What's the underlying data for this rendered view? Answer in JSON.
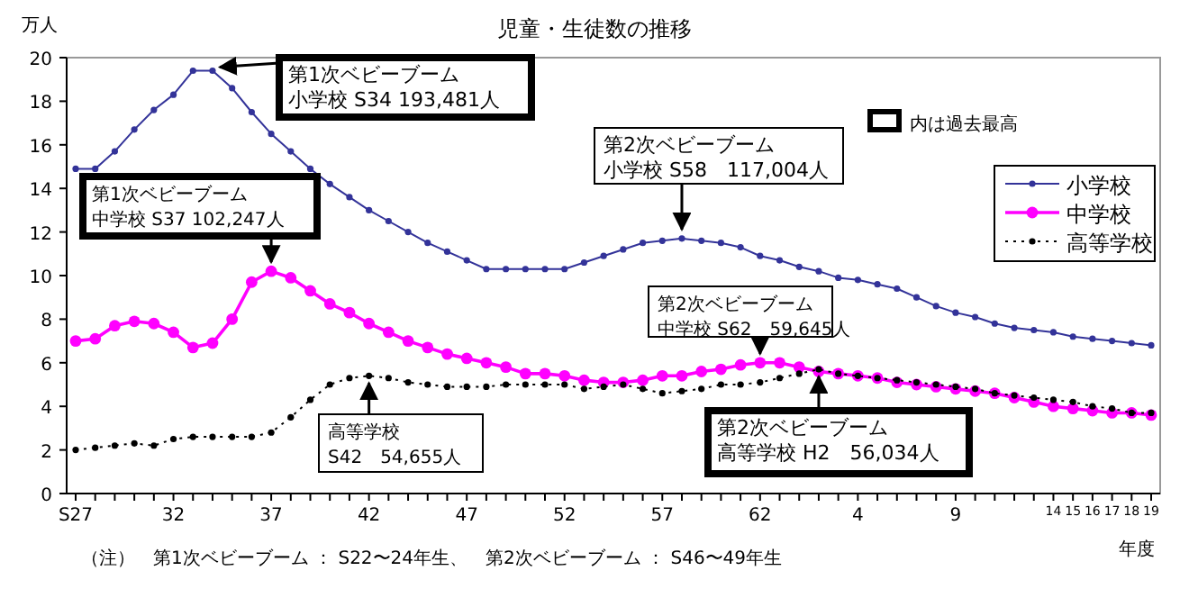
{
  "chart_data": {
    "type": "line",
    "title": "児童・生徒数の推移",
    "ylabel": "万人",
    "xlabel": "年度",
    "categories": [
      "S27",
      null,
      null,
      null,
      null,
      "32",
      null,
      null,
      null,
      null,
      "37",
      null,
      null,
      null,
      null,
      "42",
      null,
      null,
      null,
      null,
      "47",
      null,
      null,
      null,
      null,
      "52",
      null,
      null,
      null,
      null,
      "57",
      null,
      null,
      null,
      null,
      "62",
      null,
      null,
      null,
      null,
      "4",
      null,
      null,
      null,
      null,
      "9",
      null,
      null,
      null,
      null,
      "14",
      "15",
      "16",
      "17",
      "18",
      "19"
    ],
    "ylim": [
      0,
      20
    ],
    "yticks": [
      0,
      2,
      4,
      6,
      8,
      10,
      12,
      14,
      16,
      18,
      20
    ],
    "grid": false,
    "legend": "top right",
    "marker": "circle",
    "series": [
      {
        "name": "小学校",
        "color": "#333399",
        "values": [
          14.9,
          14.9,
          15.7,
          16.7,
          17.6,
          18.3,
          19.4,
          19.4,
          18.6,
          17.5,
          16.5,
          15.7,
          14.9,
          14.2,
          13.6,
          13.0,
          12.5,
          12.0,
          11.5,
          11.1,
          10.7,
          10.3,
          10.3,
          10.3,
          10.3,
          10.3,
          10.6,
          10.9,
          11.2,
          11.5,
          11.6,
          11.7,
          11.6,
          11.5,
          11.3,
          10.9,
          10.7,
          10.4,
          10.2,
          9.9,
          9.8,
          9.6,
          9.4,
          9.0,
          8.6,
          8.3,
          8.1,
          7.8,
          7.6,
          7.5,
          7.4,
          7.2,
          7.1,
          7.0,
          6.9,
          6.8
        ]
      },
      {
        "name": "中学校",
        "color": "#ff00ff",
        "values": [
          7.0,
          7.1,
          7.7,
          7.9,
          7.8,
          7.4,
          6.7,
          6.9,
          8.0,
          9.7,
          10.2,
          9.9,
          9.3,
          8.7,
          8.3,
          7.8,
          7.4,
          7.0,
          6.7,
          6.4,
          6.2,
          6.0,
          5.8,
          5.5,
          5.5,
          5.4,
          5.2,
          5.1,
          5.1,
          5.2,
          5.4,
          5.4,
          5.6,
          5.7,
          5.9,
          6.0,
          6.0,
          5.8,
          5.6,
          5.5,
          5.4,
          5.3,
          5.1,
          5.0,
          4.9,
          4.8,
          4.7,
          4.6,
          4.4,
          4.2,
          4.0,
          3.9,
          3.8,
          3.7,
          3.7,
          3.6
        ]
      },
      {
        "name": "高等学校",
        "color": "#000000",
        "line_style": "dotted",
        "values": [
          2.0,
          2.1,
          2.2,
          2.3,
          2.2,
          2.5,
          2.6,
          2.6,
          2.6,
          2.6,
          2.8,
          3.5,
          4.3,
          5.0,
          5.3,
          5.4,
          5.3,
          5.1,
          5.0,
          4.9,
          4.9,
          4.9,
          5.0,
          5.0,
          5.0,
          5.0,
          4.8,
          4.9,
          5.0,
          4.8,
          4.6,
          4.7,
          4.8,
          5.0,
          5.0,
          5.1,
          5.3,
          5.5,
          5.7,
          5.5,
          5.4,
          5.3,
          5.2,
          5.1,
          5.0,
          4.9,
          4.8,
          4.6,
          4.5,
          4.4,
          4.3,
          4.2,
          4.0,
          3.9,
          3.7,
          3.7
        ]
      }
    ],
    "annotations": [
      "第1次ベビーブーム",
      "小学校 S34 193,481人",
      "第1次ベビーブーム",
      "中学校 S37 102,247人",
      "第2次ベビーブーム",
      "小学校 S58　117,004人",
      "第2次ベビーブーム",
      "中学校 S62　59,645人",
      "高等学校",
      "S42　54,655人",
      "第2次ベビーブーム",
      "高等学校 H2　56,034人",
      "内は過去最高",
      "（注）　第1次ベビーブーム ： S22〜24年生、　第2次ベビーブーム ： S46〜49年生"
    ]
  }
}
